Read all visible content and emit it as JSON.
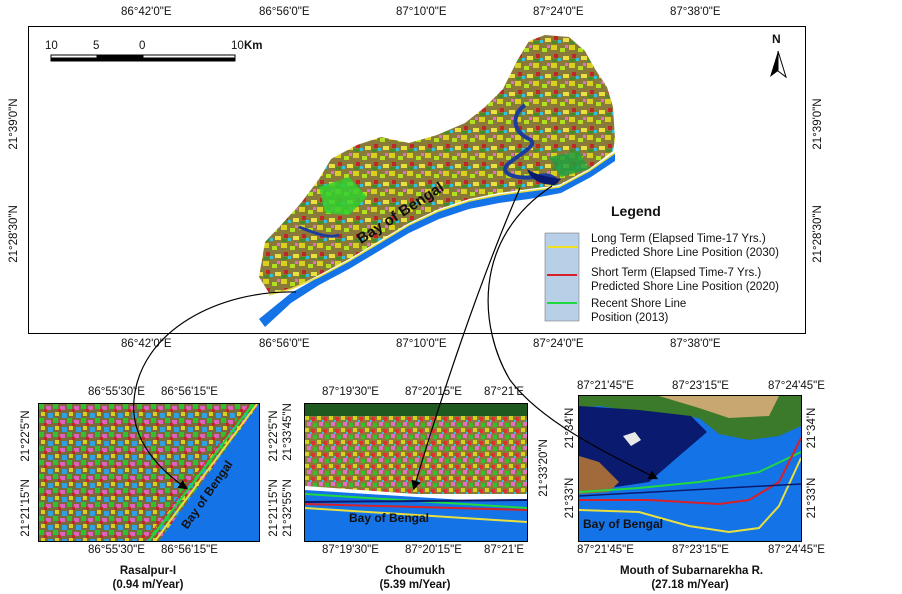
{
  "main_map": {
    "top_lon": [
      "86°42'0\"E",
      "86°56'0\"E",
      "87°10'0\"E",
      "87°24'0\"E",
      "87°38'0\"E"
    ],
    "bottom_lon": [
      "86°42'0\"E",
      "86°56'0\"E",
      "87°10'0\"E",
      "87°24'0\"E",
      "87°38'0\"E"
    ],
    "left_lat": [
      "21°39'0\"N",
      "21°28'30\"N"
    ],
    "right_lat": [
      "21°39'0\"N",
      "21°28'30\"N"
    ],
    "scale_labels": [
      "10",
      "5",
      "0",
      "10"
    ],
    "scale_unit": "Km",
    "north_label": "N",
    "sea_label": "Bay of Bengal"
  },
  "legend": {
    "title": "Legend",
    "items": [
      {
        "line1": "Long Term (Elapsed Time-17 Yrs.)",
        "line2": "Predicted Shore Line Position (2030)",
        "color": "#f0e020"
      },
      {
        "line1": "Short Term (Elapsed Time-7 Yrs.)",
        "line2": "Predicted Shore Line Position (2020)",
        "color": "#d8202a"
      },
      {
        "line1": "Recent Shore Line",
        "line2": "Position (2013)",
        "color": "#20d840"
      }
    ]
  },
  "insets": [
    {
      "top_lon": [
        "86°55'30\"E",
        "86°56'15\"E"
      ],
      "bottom_lon": [
        "86°55'30\"E",
        "86°56'15\"E"
      ],
      "left_lat": [
        "21°22'5\"N",
        "21°21'15\"N"
      ],
      "right_lat": [
        "21°22'5\"N",
        "21°21'15\"N"
      ],
      "sea_label": "Bay of Bengal",
      "caption_name": "Rasalpur-I",
      "caption_rate": "(0.94 m/Year)"
    },
    {
      "top_lon": [
        "87°19'30\"E",
        "87°20'15\"E",
        "87°21'E"
      ],
      "bottom_lon": [
        "87°19'30\"E",
        "87°20'15\"E",
        "87°21'E"
      ],
      "left_lat": [
        "21°33'45\"N",
        "21°32'55\"N"
      ],
      "right_lat": [
        "21°33'20\"N"
      ],
      "sea_label": "Bay of Bengal",
      "caption_name": "Choumukh",
      "caption_rate": "(5.39 m/Year)"
    },
    {
      "top_lon": [
        "87°21'45\"E",
        "87°23'15\"E",
        "87°24'45\"E"
      ],
      "bottom_lon": [
        "87°21'45\"E",
        "87°23'15\"E",
        "87°24'45\"E"
      ],
      "left_lat": [
        "21°34'N",
        "21°33'N"
      ],
      "right_lat": [
        "21°34'N",
        "21°33'N"
      ],
      "sea_label": "Bay of Bengal",
      "caption_name": "Mouth of Subarnarekha R.",
      "caption_rate": "(27.18 m/Year)"
    }
  ],
  "colors": {
    "sea": "#1473e6",
    "shore_blue": "#1a5ef0",
    "river": "#1e3c9c",
    "dark_water": "#0a1a6e",
    "legend_bg": "#b8cfe8"
  }
}
